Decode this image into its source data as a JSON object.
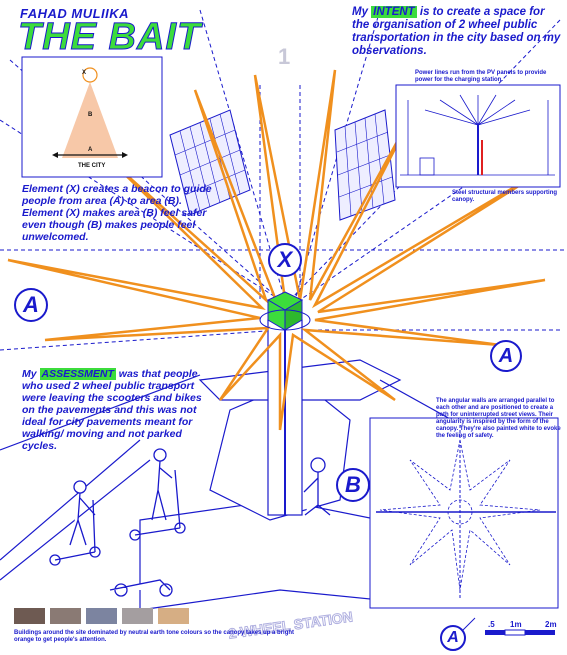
{
  "author": "FAHAD MULIIKA",
  "title": "THE BAIT",
  "intent": {
    "prefix": "My ",
    "highlight": "INTENT",
    "text": " is to create a space for the organisation of 2 wheel public transportation in the city based on my observations."
  },
  "element_text": "Element (X) creates a beacon to guide people from area (A) to area (B). Element (X) makes area (B) feel safer even though (B) makes people feel unwelcomed.",
  "assessment": {
    "prefix": "My ",
    "highlight": "ASSESSMENT",
    "text": " was that people who used 2 wheel public transport were leaving the scooters and bikes on the pavements and this was not ideal for city pavements meant for walking/ moving and not parked cycles."
  },
  "angular_walls": "The angular walls are arranged parallel to each other and are positioned to create a path for uninterrupted street views. Their angularity is inspired by the form of the canopy. They're also painted white to evoke the feeling of safety.",
  "power_lines": "Power lines run from the PV panels to provide power for the charging station.",
  "steel_members": "Steel structural members supporting canopy.",
  "swatch_caption": "Buildings around the site dominated by neutral earth tone colours so the canopy takes up a bright orange to get people's attention.",
  "inset_diagram": {
    "x_label": "X",
    "b_label": "B",
    "a_label": "A",
    "city_label": "THE CITY"
  },
  "labels": {
    "A": "A",
    "B": "B",
    "X": "X",
    "one": "1"
  },
  "station_text": "2 WHEEL STATION",
  "scale": {
    "s05": ".5",
    "s1": "1m",
    "s2": "2m"
  },
  "colors": {
    "blue": "#1a1acc",
    "green": "#3cdc3c",
    "orange": "#f0901e",
    "swatches": [
      "#6e5a52",
      "#8a7a74",
      "#7c84a0",
      "#a49ea0",
      "#d6ae84"
    ]
  }
}
